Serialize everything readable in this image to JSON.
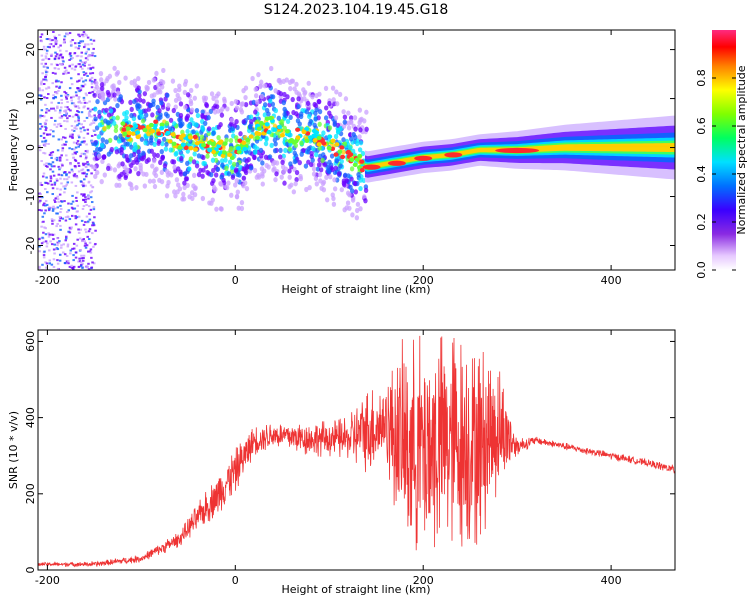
{
  "title": "S124.2023.104.19.45.G18",
  "chart_data": [
    {
      "type": "heatmap",
      "xlabel": "Height of straight line (km)",
      "ylabel": "Frequency (Hz)",
      "xlim": [
        -210,
        468
      ],
      "ylim": [
        -25,
        24
      ],
      "xticks": [
        -200,
        0,
        200,
        400
      ],
      "yticks": [
        -20,
        -10,
        0,
        10,
        20
      ],
      "colorbar": {
        "label": "Normalized spectral amplitude",
        "range": [
          0,
          1
        ],
        "ticks": [
          "0.0",
          "0.2",
          "0.4",
          "0.6",
          "0.8"
        ]
      },
      "ridge": {
        "x": [
          -130,
          -110,
          -90,
          -80,
          -60,
          -40,
          -20,
          0,
          20,
          40,
          60,
          80,
          100,
          120,
          140,
          170,
          200,
          230,
          260,
          300,
          350,
          400,
          468
        ],
        "y": [
          4,
          3,
          4,
          4,
          1,
          1,
          0,
          -1,
          3,
          5,
          2,
          3,
          1,
          -2,
          -4,
          -3,
          -2,
          -1.5,
          -0.5,
          -0.5,
          0,
          0,
          0
        ]
      }
    },
    {
      "type": "line",
      "xlabel": "Height of straight line (km)",
      "ylabel": "SNR (10 * v/v)",
      "xlim": [
        -210,
        468
      ],
      "ylim": [
        0,
        630
      ],
      "xticks": [
        -200,
        0,
        200,
        400
      ],
      "yticks": [
        0,
        200,
        400,
        600
      ],
      "color": "#ee3333",
      "envelope": {
        "x": [
          -210,
          -150,
          -100,
          -60,
          -20,
          0,
          20,
          40,
          80,
          120,
          140,
          160,
          180,
          200,
          220,
          240,
          260,
          280,
          300,
          320,
          360,
          400,
          440,
          468
        ],
        "low": [
          10,
          8,
          20,
          60,
          140,
          200,
          300,
          320,
          300,
          290,
          250,
          280,
          30,
          20,
          40,
          50,
          60,
          200,
          300,
          330,
          310,
          290,
          270,
          250
        ],
        "high": [
          20,
          22,
          40,
          100,
          250,
          320,
          380,
          390,
          390,
          400,
          480,
          500,
          620,
          630,
          630,
          620,
          600,
          560,
          350,
          350,
          330,
          310,
          290,
          275
        ]
      }
    }
  ]
}
